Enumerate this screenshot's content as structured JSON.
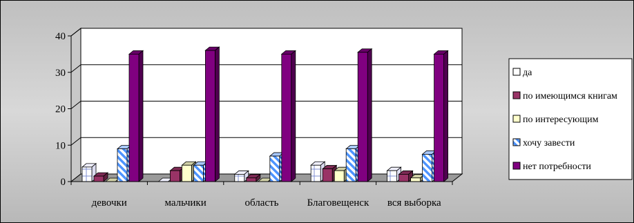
{
  "chart_data": {
    "type": "bar",
    "categories": [
      "девочки",
      "мальчики",
      "область",
      "Благовещенск",
      "вся выборка"
    ],
    "series": [
      {
        "name": "да",
        "values": [
          4,
          0,
          2,
          4.5,
          3
        ],
        "color": "#ffffff",
        "pattern": "grid"
      },
      {
        "name": "по имеющимся книгам",
        "values": [
          1.5,
          3,
          1,
          3.5,
          2
        ],
        "color": "#993366",
        "pattern": "solid"
      },
      {
        "name": "по интересующим",
        "values": [
          0,
          4.5,
          0,
          3,
          1
        ],
        "color": "#ffffcc",
        "pattern": "solid"
      },
      {
        "name": "хочу завести",
        "values": [
          9,
          4.5,
          7,
          9,
          7.5
        ],
        "color": "#66aaff",
        "pattern": "diagonal"
      },
      {
        "name": "нет потребности",
        "values": [
          35,
          36,
          35,
          35.5,
          35
        ],
        "color": "#800080",
        "pattern": "solid"
      }
    ],
    "ylim": [
      0,
      40
    ],
    "yticks": [
      0,
      10,
      20,
      30,
      40
    ],
    "grid": true,
    "legend_position": "right",
    "title": "",
    "xlabel": "",
    "ylabel": ""
  }
}
